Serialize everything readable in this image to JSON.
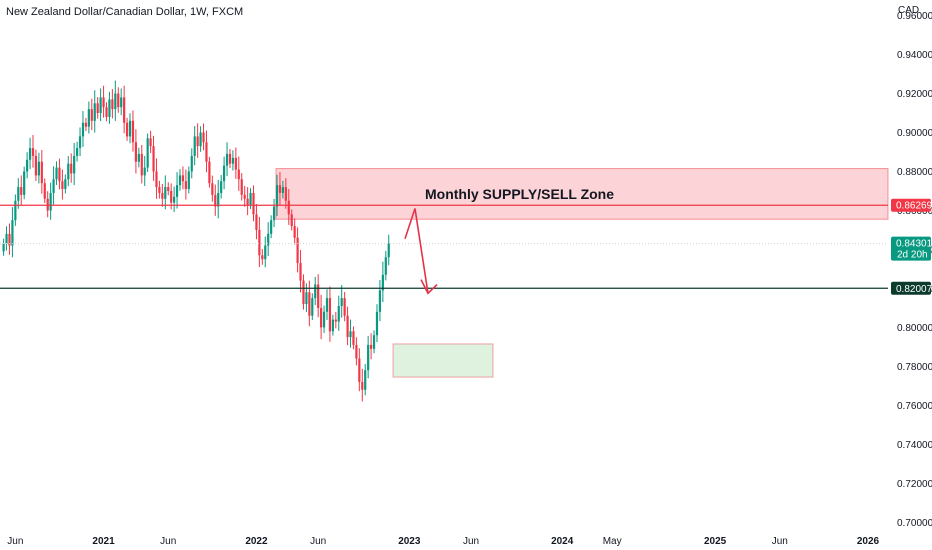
{
  "chart_title": "New Zealand Dollar/Canadian Dollar, 1W, FXCM",
  "chart_data": {
    "type": "candlestick",
    "currency_label": "CAD",
    "y_ticks": [
      "0.96000",
      "0.94000",
      "0.92000",
      "0.90000",
      "0.88000",
      "0.86000",
      "0.84000",
      "0.82000",
      "0.80000",
      "0.78000",
      "0.76000",
      "0.74000",
      "0.72000",
      "0.70000"
    ],
    "ylim": [
      0.695,
      0.968
    ],
    "x_ticks": [
      {
        "label": "Jun",
        "bold": false,
        "idx": 4
      },
      {
        "label": "2021",
        "bold": true,
        "idx": 34
      },
      {
        "label": "Jun",
        "bold": false,
        "idx": 56
      },
      {
        "label": "2022",
        "bold": true,
        "idx": 86
      },
      {
        "label": "Jun",
        "bold": false,
        "idx": 107
      },
      {
        "label": "2023",
        "bold": true,
        "idx": 138
      },
      {
        "label": "Jun",
        "bold": false,
        "idx": 159
      },
      {
        "label": "2024",
        "bold": true,
        "idx": 190
      },
      {
        "label": "May",
        "bold": false,
        "idx": 207
      },
      {
        "label": "2025",
        "bold": true,
        "idx": 242
      },
      {
        "label": "Jun",
        "bold": false,
        "idx": 264
      },
      {
        "label": "2026",
        "bold": true,
        "idx": 294
      }
    ],
    "closes": [
      0.843,
      0.848,
      0.842,
      0.855,
      0.865,
      0.872,
      0.868,
      0.88,
      0.886,
      0.892,
      0.888,
      0.878,
      0.885,
      0.874,
      0.866,
      0.86,
      0.869,
      0.876,
      0.882,
      0.875,
      0.871,
      0.876,
      0.884,
      0.879,
      0.888,
      0.892,
      0.898,
      0.905,
      0.903,
      0.912,
      0.906,
      0.915,
      0.91,
      0.918,
      0.913,
      0.908,
      0.917,
      0.912,
      0.92,
      0.913,
      0.918,
      0.905,
      0.898,
      0.906,
      0.895,
      0.885,
      0.889,
      0.878,
      0.882,
      0.897,
      0.893,
      0.88,
      0.872,
      0.869,
      0.866,
      0.872,
      0.87,
      0.864,
      0.867,
      0.873,
      0.878,
      0.875,
      0.871,
      0.88,
      0.888,
      0.898,
      0.893,
      0.9,
      0.895,
      0.885,
      0.874,
      0.868,
      0.862,
      0.869,
      0.875,
      0.883,
      0.889,
      0.884,
      0.887,
      0.881,
      0.876,
      0.868,
      0.866,
      0.863,
      0.869,
      0.858,
      0.85,
      0.837,
      0.835,
      0.842,
      0.848,
      0.855,
      0.862,
      0.873,
      0.869,
      0.872,
      0.865,
      0.858,
      0.852,
      0.846,
      0.833,
      0.824,
      0.812,
      0.818,
      0.806,
      0.815,
      0.822,
      0.81,
      0.8,
      0.808,
      0.815,
      0.798,
      0.804,
      0.803,
      0.811,
      0.815,
      0.806,
      0.795,
      0.798,
      0.791,
      0.784,
      0.772,
      0.768,
      0.778,
      0.791,
      0.789,
      0.796,
      0.808,
      0.819,
      0.827,
      0.836,
      0.843
    ],
    "series_notes": "weekly candles, last close 0.84301",
    "levels": [
      {
        "name": "resistance",
        "value": 0.86269,
        "label": "0.86269",
        "color": "#f23645"
      },
      {
        "name": "support",
        "value": 0.82007,
        "label": "0.82007",
        "color": "#0c3b2e"
      }
    ],
    "last_price": {
      "value": 0.84301,
      "label": "0.84301",
      "countdown": "2d 20h",
      "color": "#089981"
    },
    "supply_zone": {
      "label": "Monthly SUPPLY/SELL Zone",
      "top": 0.8815,
      "bottom": 0.8555,
      "color": "#f23645"
    },
    "demand_zone": {
      "top": 0.7915,
      "bottom": 0.7745,
      "color": "#4caf50"
    },
    "colors": {
      "up": "#089981",
      "down": "#f23645",
      "arrow": "#e2334a"
    }
  }
}
